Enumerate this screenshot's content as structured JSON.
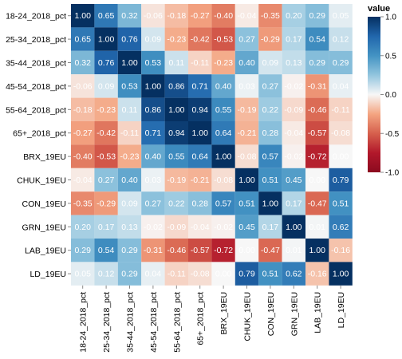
{
  "chart_data": {
    "type": "heatmap",
    "x_categories": [
      "18-24_2018_pct",
      "25-34_2018_pct",
      "35-44_2018_pct",
      "45-54_2018_pct",
      "55-64_2018_pct",
      "65+_2018_pct",
      "BRX_19EU",
      "CHUK_19EU",
      "CON_19EU",
      "GRN_19EU",
      "LAB_19EU",
      "LD_19EU"
    ],
    "y_categories": [
      "18-24_2018_pct",
      "25-34_2018_pct",
      "35-44_2018_pct",
      "45-54_2018_pct",
      "55-64_2018_pct",
      "65+_2018_pct",
      "BRX_19EU",
      "CHUK_19EU",
      "CON_19EU",
      "GRN_19EU",
      "LAB_19EU",
      "LD_19EU"
    ],
    "values": [
      [
        1.0,
        0.65,
        0.32,
        -0.06,
        -0.18,
        -0.27,
        -0.4,
        -0.04,
        -0.35,
        0.2,
        0.29,
        0.05
      ],
      [
        0.65,
        1.0,
        0.76,
        0.09,
        -0.23,
        -0.42,
        -0.53,
        0.27,
        -0.29,
        0.17,
        0.54,
        0.12
      ],
      [
        0.32,
        0.76,
        1.0,
        0.53,
        0.11,
        -0.11,
        -0.23,
        0.4,
        0.09,
        0.13,
        0.29,
        0.29
      ],
      [
        -0.06,
        0.09,
        0.53,
        1.0,
        0.86,
        0.71,
        0.4,
        0.03,
        0.27,
        -0.02,
        -0.31,
        0.04
      ],
      [
        -0.18,
        -0.23,
        0.11,
        0.86,
        1.0,
        0.94,
        0.55,
        -0.19,
        0.22,
        -0.09,
        -0.46,
        -0.11
      ],
      [
        -0.27,
        -0.42,
        -0.11,
        0.71,
        0.94,
        1.0,
        0.64,
        -0.21,
        0.28,
        -0.04,
        -0.57,
        -0.08
      ],
      [
        -0.4,
        -0.53,
        -0.23,
        0.4,
        0.55,
        0.64,
        1.0,
        -0.08,
        0.57,
        -0.02,
        -0.72,
        0.0
      ],
      [
        -0.04,
        0.27,
        0.4,
        0.03,
        -0.19,
        -0.21,
        -0.08,
        1.0,
        0.51,
        0.45,
        0.0,
        0.79
      ],
      [
        -0.35,
        -0.29,
        0.09,
        0.27,
        0.22,
        0.28,
        0.57,
        0.51,
        1.0,
        0.17,
        -0.47,
        0.51
      ],
      [
        0.2,
        0.17,
        0.13,
        -0.02,
        -0.09,
        -0.04,
        -0.02,
        0.45,
        0.17,
        1.0,
        0.01,
        0.62
      ],
      [
        0.29,
        0.54,
        0.29,
        -0.31,
        -0.46,
        -0.57,
        -0.72,
        0.0,
        -0.47,
        0.01,
        1.0,
        -0.16
      ],
      [
        0.05,
        0.12,
        0.29,
        0.04,
        -0.11,
        -0.08,
        0.0,
        0.79,
        0.51,
        0.62,
        -0.16,
        1.0
      ]
    ],
    "color_scale": {
      "domain": [
        -1.0,
        1.0
      ],
      "low_color": "#b2182b",
      "mid_color": "#f7f7f7",
      "high_color": "#2166ac"
    },
    "legend": {
      "title": "value",
      "ticks": [
        "1.0",
        "0.5",
        "0.0",
        "-0.5",
        "-1.0"
      ],
      "placement": "top-right"
    }
  }
}
